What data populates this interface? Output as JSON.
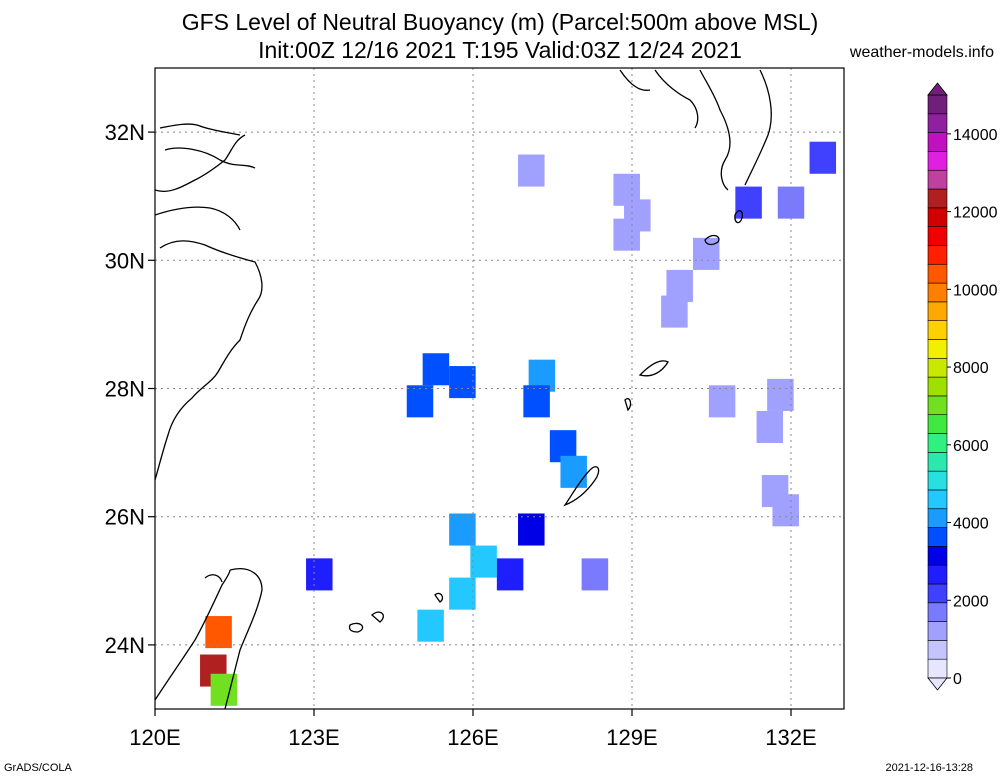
{
  "title_line1": "GFS Level of Neutral Buoyancy (m) (Parcel:500m above MSL)",
  "title_line2": "Init:00Z 12/16 2021 T:195 Valid:03Z 12/24 2021",
  "site": "weather-models.info",
  "footer_left": "GrADS/COLA",
  "footer_right": "2021-12-16-13:28",
  "map": {
    "lon_range": [
      120,
      133
    ],
    "lat_range": [
      23,
      33
    ],
    "x_ticks": [
      {
        "lon": 120,
        "label": "120E"
      },
      {
        "lon": 123,
        "label": "123E"
      },
      {
        "lon": 126,
        "label": "126E"
      },
      {
        "lon": 129,
        "label": "129E"
      },
      {
        "lon": 132,
        "label": "132E"
      }
    ],
    "y_ticks": [
      {
        "lat": 32,
        "label": "32N"
      },
      {
        "lat": 30,
        "label": "30N"
      },
      {
        "lat": 28,
        "label": "28N"
      },
      {
        "lat": 26,
        "label": "26N"
      },
      {
        "lat": 24,
        "label": "24N"
      }
    ],
    "grid": true,
    "cell_size_deg": 0.25
  },
  "colorbar": {
    "min": 0,
    "max": 15000,
    "labels": [
      "0",
      "2000",
      "4000",
      "6000",
      "8000",
      "10000",
      "12000",
      "14000"
    ],
    "colors": [
      "#e6e6ff",
      "#c4c4ff",
      "#a0a0ff",
      "#7a7aff",
      "#4040ff",
      "#1e1eff",
      "#0000e6",
      "#0050ff",
      "#1a9bff",
      "#22c8ff",
      "#28e0e0",
      "#2ae8b0",
      "#30f080",
      "#40e840",
      "#70e020",
      "#a0e000",
      "#c8e800",
      "#f0f000",
      "#ffd000",
      "#ffa800",
      "#ff8000",
      "#ff5800",
      "#ff2000",
      "#f00000",
      "#d00000",
      "#b02020",
      "#c040a0",
      "#e020e0",
      "#c010c0",
      "#9020a0",
      "#70207a"
    ]
  },
  "chart_data": {
    "type": "heatmap",
    "variable": "Level of Neutral Buoyancy (m)",
    "cells": [
      {
        "lon": 127.1,
        "lat": 31.4,
        "value": 1200
      },
      {
        "lon": 128.9,
        "lat": 31.1,
        "value": 1100
      },
      {
        "lon": 129.1,
        "lat": 30.7,
        "value": 1200
      },
      {
        "lon": 128.9,
        "lat": 30.4,
        "value": 1100
      },
      {
        "lon": 130.4,
        "lat": 30.1,
        "value": 1300
      },
      {
        "lon": 129.9,
        "lat": 29.6,
        "value": 1100
      },
      {
        "lon": 129.8,
        "lat": 29.2,
        "value": 1200
      },
      {
        "lon": 131.2,
        "lat": 30.9,
        "value": 2300
      },
      {
        "lon": 132.0,
        "lat": 30.9,
        "value": 1800
      },
      {
        "lon": 132.6,
        "lat": 31.6,
        "value": 2400
      },
      {
        "lon": 125.3,
        "lat": 28.3,
        "value": 3800
      },
      {
        "lon": 125.8,
        "lat": 28.1,
        "value": 3600
      },
      {
        "lon": 125.0,
        "lat": 27.8,
        "value": 3700
      },
      {
        "lon": 127.3,
        "lat": 28.2,
        "value": 3900
      },
      {
        "lon": 127.2,
        "lat": 27.8,
        "value": 3700
      },
      {
        "lon": 127.7,
        "lat": 27.1,
        "value": 3800
      },
      {
        "lon": 127.9,
        "lat": 26.7,
        "value": 3900
      },
      {
        "lon": 130.7,
        "lat": 27.8,
        "value": 1100
      },
      {
        "lon": 131.8,
        "lat": 27.9,
        "value": 1200
      },
      {
        "lon": 131.6,
        "lat": 27.4,
        "value": 1300
      },
      {
        "lon": 131.7,
        "lat": 26.4,
        "value": 1100
      },
      {
        "lon": 131.9,
        "lat": 26.1,
        "value": 1000
      },
      {
        "lon": 125.8,
        "lat": 25.8,
        "value": 4200
      },
      {
        "lon": 126.2,
        "lat": 25.3,
        "value": 4800
      },
      {
        "lon": 125.8,
        "lat": 24.8,
        "value": 4500
      },
      {
        "lon": 125.2,
        "lat": 24.3,
        "value": 4700
      },
      {
        "lon": 126.7,
        "lat": 25.1,
        "value": 2600
      },
      {
        "lon": 127.1,
        "lat": 25.8,
        "value": 3000
      },
      {
        "lon": 128.3,
        "lat": 25.1,
        "value": 1500
      },
      {
        "lon": 123.1,
        "lat": 25.1,
        "value": 2700
      },
      {
        "lon": 121.2,
        "lat": 24.2,
        "value": 10500
      },
      {
        "lon": 121.1,
        "lat": 23.6,
        "value": 12500
      },
      {
        "lon": 121.3,
        "lat": 23.3,
        "value": 7000
      }
    ]
  }
}
